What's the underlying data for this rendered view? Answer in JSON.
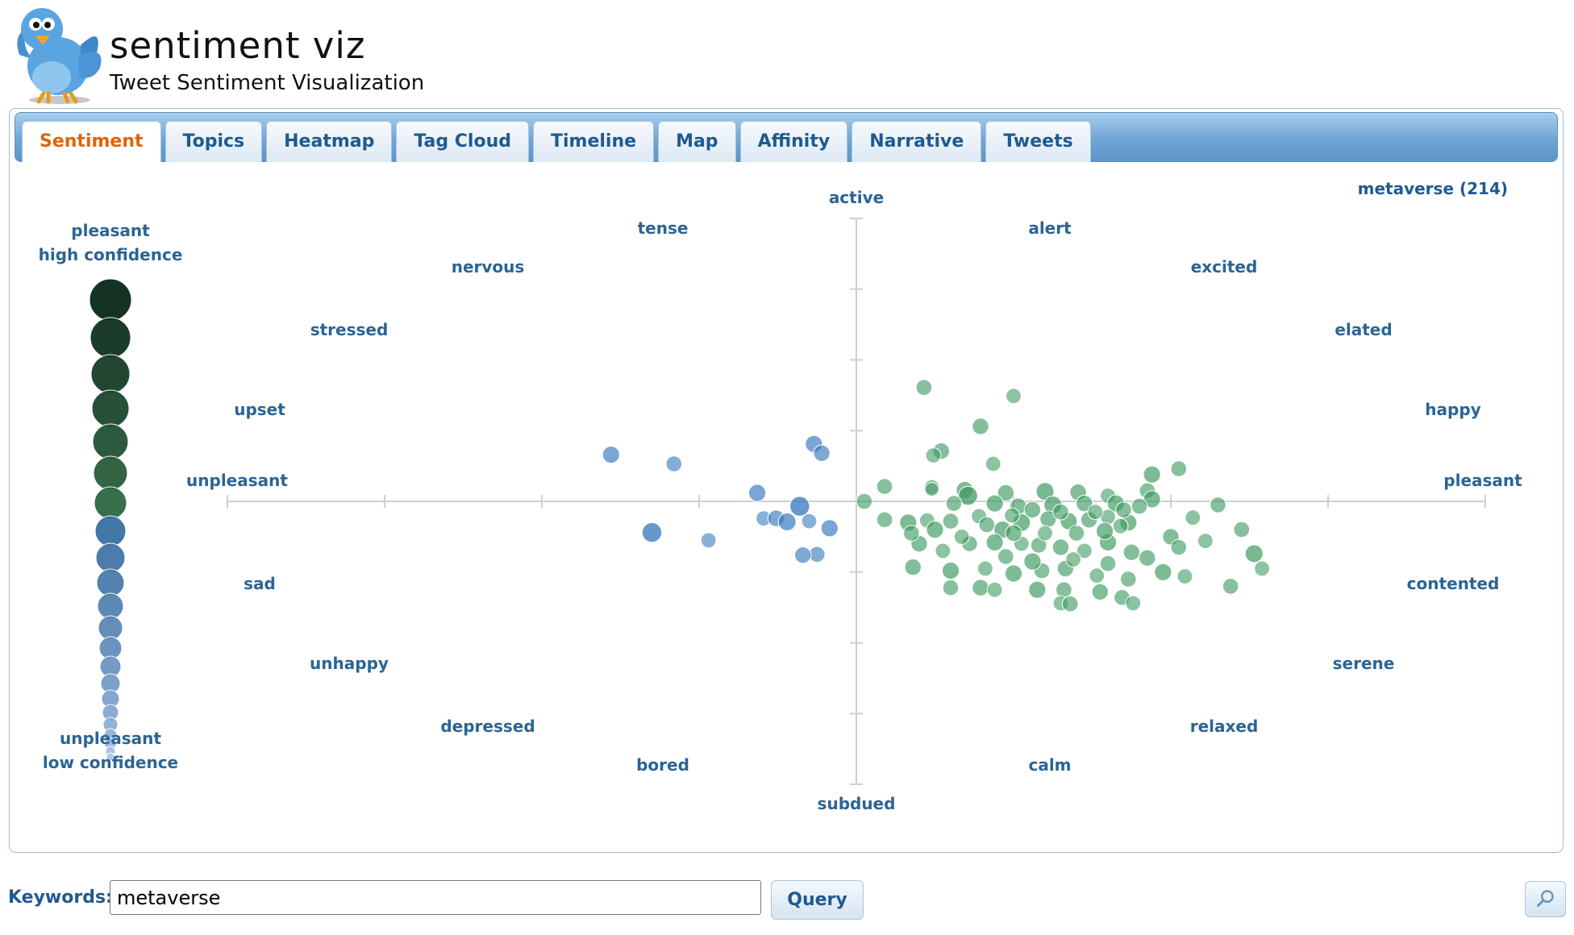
{
  "app": {
    "title": "sentiment viz",
    "subtitle": "Tweet Sentiment Visualization",
    "logo_icon": "twitter-bird-icon"
  },
  "tabs": [
    {
      "label": "Sentiment",
      "active": true
    },
    {
      "label": "Topics",
      "active": false
    },
    {
      "label": "Heatmap",
      "active": false
    },
    {
      "label": "Tag Cloud",
      "active": false
    },
    {
      "label": "Timeline",
      "active": false
    },
    {
      "label": "Map",
      "active": false
    },
    {
      "label": "Affinity",
      "active": false
    },
    {
      "label": "Narrative",
      "active": false
    },
    {
      "label": "Tweets",
      "active": false
    }
  ],
  "legend": {
    "top_line1": "pleasant",
    "top_line2": "high confidence",
    "bottom_line1": "unpleasant",
    "bottom_line2": "low confidence"
  },
  "query_summary": "metaverse (214)",
  "colors": {
    "pleasant": "#3f9b62",
    "unpleasant": "#3b7bbf",
    "tab_active_text": "#e0640a",
    "label_text": "#2b6495"
  },
  "chart_data": {
    "type": "scatter",
    "x_axis": {
      "negative_end": "unpleasant",
      "positive_end": "pleasant"
    },
    "y_axis": {
      "positive_end": "active",
      "negative_end": "subdued"
    },
    "xlim": [
      -4,
      4
    ],
    "ylim": [
      -4,
      4
    ],
    "grid": false,
    "emotion_labels": [
      "active",
      "alert",
      "excited",
      "elated",
      "happy",
      "pleasant",
      "contented",
      "serene",
      "relaxed",
      "calm",
      "subdued",
      "bored",
      "depressed",
      "unhappy",
      "sad",
      "unpleasant",
      "upset",
      "stressed",
      "nervous",
      "tense"
    ],
    "points": [
      [
        -1.56,
        0.66,
        0.45
      ],
      [
        -1.16,
        0.53,
        0.35
      ],
      [
        -0.27,
        0.81,
        0.45
      ],
      [
        -0.22,
        0.68,
        0.4
      ],
      [
        -0.63,
        0.12,
        0.45
      ],
      [
        -0.36,
        -0.07,
        0.65
      ],
      [
        -0.59,
        -0.24,
        0.3
      ],
      [
        -0.51,
        -0.24,
        0.4
      ],
      [
        -0.44,
        -0.29,
        0.5
      ],
      [
        -0.3,
        -0.28,
        0.3
      ],
      [
        -0.17,
        -0.38,
        0.45
      ],
      [
        -1.3,
        -0.44,
        0.65
      ],
      [
        -0.94,
        -0.55,
        0.3
      ],
      [
        -0.25,
        -0.75,
        0.35
      ],
      [
        -0.34,
        -0.76,
        0.4
      ],
      [
        0.43,
        1.61,
        0.35
      ],
      [
        1.0,
        1.49,
        0.3
      ],
      [
        0.79,
        1.06,
        0.4
      ],
      [
        0.54,
        0.71,
        0.4
      ],
      [
        0.49,
        0.65,
        0.3
      ],
      [
        0.87,
        0.53,
        0.3
      ],
      [
        2.05,
        0.46,
        0.35
      ],
      [
        1.88,
        0.38,
        0.45
      ],
      [
        0.18,
        0.21,
        0.35
      ],
      [
        0.48,
        0.2,
        0.3
      ],
      [
        0.48,
        0.17,
        0.2
      ],
      [
        0.69,
        0.16,
        0.45
      ],
      [
        0.71,
        0.08,
        0.6
      ],
      [
        0.95,
        0.12,
        0.4
      ],
      [
        1.2,
        0.14,
        0.5
      ],
      [
        1.41,
        0.13,
        0.4
      ],
      [
        1.85,
        0.15,
        0.35
      ],
      [
        1.88,
        0.03,
        0.45
      ],
      [
        1.6,
        0.08,
        0.3
      ],
      [
        0.05,
        0.0,
        0.35
      ],
      [
        0.88,
        -0.03,
        0.45
      ],
      [
        1.03,
        -0.07,
        0.4
      ],
      [
        1.25,
        -0.05,
        0.5
      ],
      [
        1.45,
        -0.03,
        0.4
      ],
      [
        1.65,
        -0.03,
        0.45
      ],
      [
        1.8,
        -0.07,
        0.35
      ],
      [
        0.18,
        -0.26,
        0.35
      ],
      [
        0.33,
        -0.3,
        0.45
      ],
      [
        0.45,
        -0.27,
        0.3
      ],
      [
        0.6,
        -0.28,
        0.35
      ],
      [
        0.78,
        -0.21,
        0.3
      ],
      [
        0.83,
        -0.33,
        0.35
      ],
      [
        0.93,
        -0.4,
        0.45
      ],
      [
        1.05,
        -0.3,
        0.5
      ],
      [
        1.22,
        -0.25,
        0.4
      ],
      [
        1.35,
        -0.28,
        0.45
      ],
      [
        1.48,
        -0.26,
        0.4
      ],
      [
        1.6,
        -0.22,
        0.3
      ],
      [
        1.73,
        -0.3,
        0.45
      ],
      [
        2.14,
        -0.23,
        0.3
      ],
      [
        2.45,
        -0.4,
        0.35
      ],
      [
        0.4,
        -0.6,
        0.4
      ],
      [
        0.55,
        -0.7,
        0.3
      ],
      [
        0.72,
        -0.6,
        0.35
      ],
      [
        0.88,
        -0.58,
        0.45
      ],
      [
        1.05,
        -0.6,
        0.3
      ],
      [
        1.16,
        -0.62,
        0.35
      ],
      [
        1.3,
        -0.65,
        0.4
      ],
      [
        1.45,
        -0.7,
        0.3
      ],
      [
        1.6,
        -0.58,
        0.45
      ],
      [
        1.75,
        -0.72,
        0.4
      ],
      [
        2.22,
        -0.56,
        0.3
      ],
      [
        2.53,
        -0.74,
        0.5
      ],
      [
        2.58,
        -0.95,
        0.3
      ],
      [
        0.36,
        -0.93,
        0.4
      ],
      [
        0.6,
        -0.98,
        0.45
      ],
      [
        0.82,
        -0.95,
        0.3
      ],
      [
        1.0,
        -1.02,
        0.45
      ],
      [
        1.18,
        -0.98,
        0.35
      ],
      [
        1.33,
        -0.95,
        0.4
      ],
      [
        1.53,
        -1.05,
        0.3
      ],
      [
        1.73,
        -1.1,
        0.35
      ],
      [
        2.09,
        -1.06,
        0.3
      ],
      [
        2.38,
        -1.2,
        0.35
      ],
      [
        0.6,
        -1.22,
        0.35
      ],
      [
        0.79,
        -1.22,
        0.4
      ],
      [
        0.88,
        -1.25,
        0.3
      ],
      [
        1.15,
        -1.25,
        0.45
      ],
      [
        1.32,
        -1.25,
        0.35
      ],
      [
        1.55,
        -1.28,
        0.4
      ],
      [
        1.69,
        -1.36,
        0.35
      ],
      [
        1.76,
        -1.44,
        0.3
      ],
      [
        1.3,
        -1.44,
        0.3
      ],
      [
        1.36,
        -1.45,
        0.35
      ],
      [
        0.35,
        -0.45,
        0.35
      ],
      [
        0.5,
        -0.4,
        0.45
      ],
      [
        1.0,
        -0.45,
        0.4
      ],
      [
        1.2,
        -0.45,
        0.3
      ],
      [
        1.4,
        -0.45,
        0.35
      ],
      [
        1.58,
        -0.42,
        0.45
      ],
      [
        1.68,
        -0.35,
        0.3
      ],
      [
        0.62,
        -0.03,
        0.35
      ],
      [
        0.99,
        -0.2,
        0.3
      ],
      [
        1.12,
        -0.12,
        0.4
      ],
      [
        1.3,
        -0.15,
        0.35
      ],
      [
        1.52,
        -0.15,
        0.3
      ],
      [
        1.7,
        -0.12,
        0.35
      ],
      [
        0.67,
        -0.5,
        0.3
      ],
      [
        0.95,
        -0.78,
        0.35
      ],
      [
        1.12,
        -0.85,
        0.45
      ],
      [
        1.38,
        -0.82,
        0.3
      ],
      [
        1.6,
        -0.88,
        0.35
      ],
      [
        1.85,
        -0.8,
        0.4
      ],
      [
        1.95,
        -1.0,
        0.45
      ],
      [
        2.0,
        -0.5,
        0.4
      ],
      [
        2.3,
        -0.05,
        0.35
      ],
      [
        2.05,
        -0.65,
        0.35
      ]
    ]
  },
  "search": {
    "label": "Keywords:",
    "value": "metaverse",
    "button_label": "Query",
    "zoom_icon": "magnifier-icon"
  }
}
